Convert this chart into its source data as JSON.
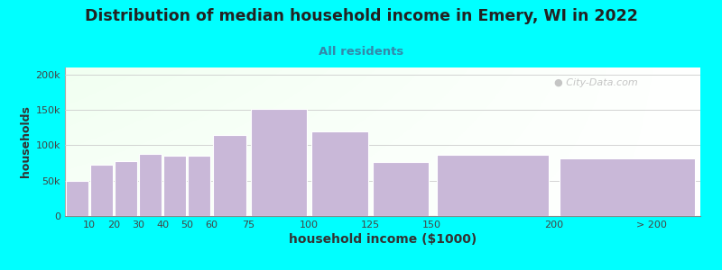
{
  "title": "Distribution of median household income in Emery, WI in 2022",
  "subtitle": "All residents",
  "xlabel": "household income ($1000)",
  "ylabel": "households",
  "background_color": "#00FFFF",
  "bar_color": "#c9b8d8",
  "bar_edge_color": "#ffffff",
  "title_fontsize": 12.5,
  "title_color": "#222222",
  "subtitle_fontsize": 9.5,
  "subtitle_color": "#3388aa",
  "categories": [
    "10",
    "20",
    "30",
    "40",
    "50",
    "60",
    "75",
    "100",
    "125",
    "150",
    "200",
    "> 200"
  ],
  "values": [
    50000,
    72000,
    78000,
    88000,
    85000,
    85000,
    114000,
    152000,
    120000,
    77000,
    87000,
    82000
  ],
  "bar_lefts": [
    0,
    10,
    20,
    30,
    40,
    50,
    60,
    75,
    100,
    125,
    150,
    200
  ],
  "bar_widths": [
    10,
    10,
    10,
    10,
    10,
    10,
    15,
    25,
    25,
    25,
    50,
    60
  ],
  "xtick_positions": [
    10,
    20,
    30,
    40,
    50,
    60,
    75,
    100,
    125,
    150,
    200,
    240
  ],
  "xtick_labels": [
    "10",
    "20",
    "30",
    "40",
    "50",
    "60",
    "75",
    "100",
    "125",
    "150",
    "200",
    "> 200"
  ],
  "xlim": [
    0,
    260
  ],
  "ylim": [
    0,
    210000
  ],
  "yticks": [
    0,
    50000,
    100000,
    150000,
    200000
  ],
  "ytick_labels": [
    "0",
    "50k",
    "100k",
    "150k",
    "200k"
  ],
  "watermark_text": "City-Data.com",
  "watermark_color": "#bbbbbb"
}
